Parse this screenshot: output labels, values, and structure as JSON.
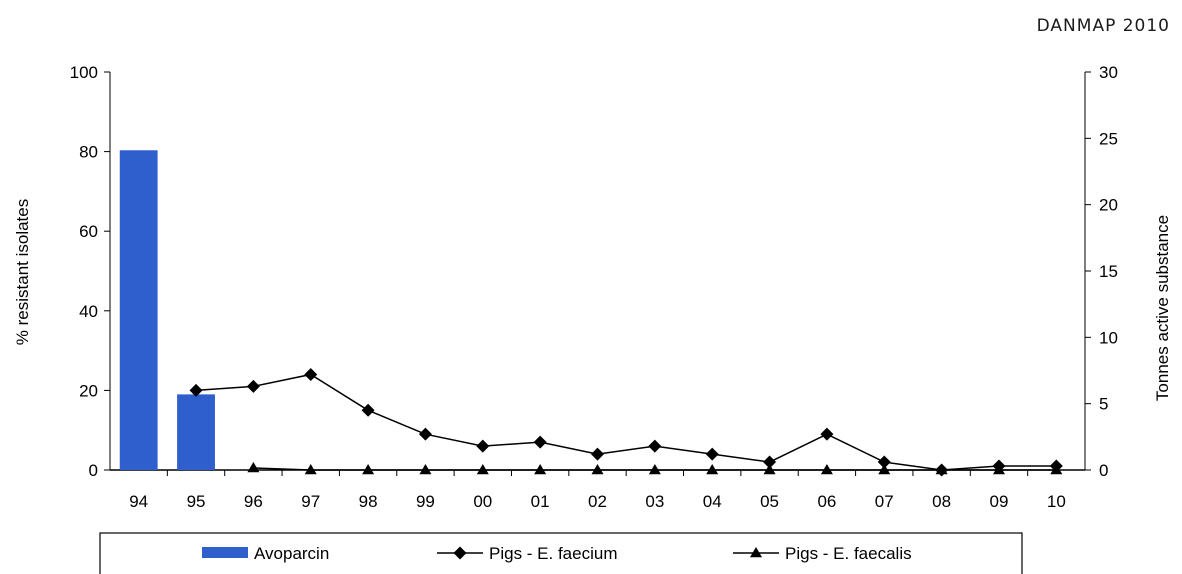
{
  "header": {
    "source_label": "DANMAP 2010"
  },
  "chart_data": {
    "type": "bar",
    "categories": [
      "94",
      "95",
      "96",
      "97",
      "98",
      "99",
      "00",
      "01",
      "02",
      "03",
      "04",
      "05",
      "06",
      "07",
      "08",
      "09",
      "10"
    ],
    "ylabel_left": "% resistant isolates",
    "ylabel_right": "Tonnes active substance",
    "ylim_left": [
      0,
      100
    ],
    "ylim_right": [
      0,
      30
    ],
    "yticks_left": [
      0,
      20,
      40,
      60,
      80,
      100
    ],
    "yticks_right": [
      0,
      5,
      10,
      15,
      20,
      25,
      30
    ],
    "grid": false,
    "legend_position": "bottom",
    "series": [
      {
        "name": "Avoparcin",
        "kind": "bar",
        "axis": "right",
        "color": "#2f5fcc",
        "values": [
          24.1,
          5.7,
          null,
          null,
          null,
          null,
          null,
          null,
          null,
          null,
          null,
          null,
          null,
          null,
          null,
          null,
          null
        ]
      },
      {
        "name": "Pigs - E. faecium",
        "kind": "line",
        "marker": "diamond",
        "axis": "left",
        "color": "#000000",
        "values": [
          null,
          20,
          21,
          24,
          15,
          9,
          6,
          7,
          4,
          6,
          4,
          2,
          9,
          2,
          0,
          1,
          1
        ]
      },
      {
        "name": "Pigs - E. faecalis",
        "kind": "line",
        "marker": "triangle",
        "axis": "left",
        "color": "#000000",
        "values": [
          null,
          null,
          0.5,
          0,
          0,
          0,
          0,
          0,
          0,
          0,
          0,
          0,
          0,
          0,
          0,
          0,
          0
        ]
      }
    ]
  }
}
